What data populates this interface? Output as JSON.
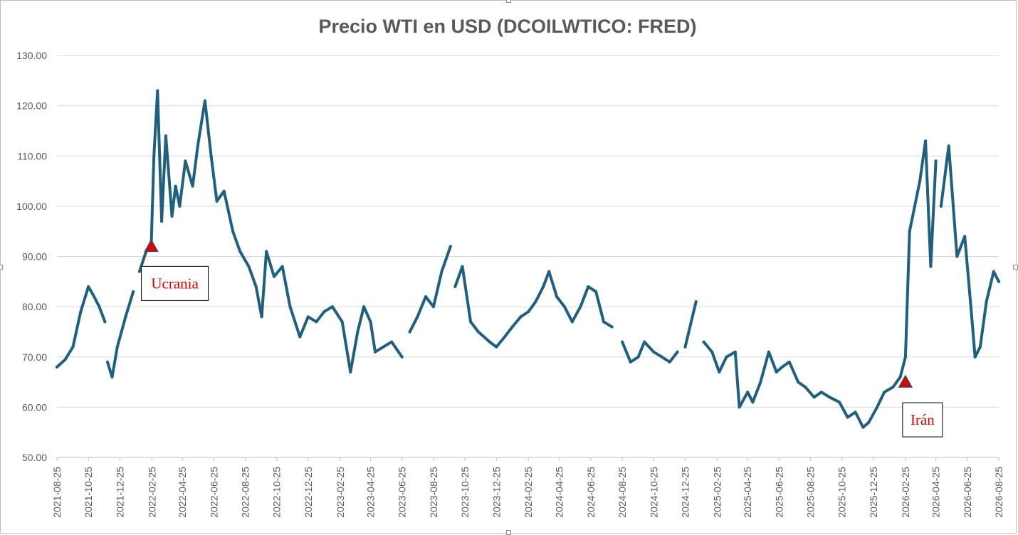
{
  "chart_data": {
    "type": "line",
    "title": "Precio WTI en USD (DCOILWTICO: FRED)",
    "xlabel": "",
    "ylabel": "",
    "ylim": [
      50,
      130
    ],
    "yticks": [
      "50.00",
      "60.00",
      "70.00",
      "80.00",
      "90.00",
      "100.00",
      "110.00",
      "120.00",
      "130.00"
    ],
    "xticks": [
      "2021-08-25",
      "2021-10-25",
      "2021-12-25",
      "2022-02-25",
      "2022-04-25",
      "2022-06-25",
      "2022-08-25",
      "2022-10-25",
      "2022-12-25",
      "2023-02-25",
      "2023-04-25",
      "2023-06-25",
      "2023-08-25",
      "2023-10-25",
      "2023-12-25",
      "2024-02-25",
      "2024-04-25",
      "2024-06-25",
      "2024-08-25",
      "2024-10-25",
      "2024-12-25",
      "2025-02-25",
      "2025-04-25",
      "2025-06-25",
      "2025-08-25",
      "2025-10-25",
      "2025-12-25",
      "2026-02-25",
      "2026-04-25",
      "2026-06-25",
      "2026-08-25"
    ],
    "grid": true,
    "legend": "none",
    "line_color": "#1f5f7f",
    "series": [
      {
        "x": [
          "2021-08-25",
          "2021-09-10",
          "2021-09-25",
          "2021-10-10",
          "2021-10-25",
          "2021-11-05",
          "2021-11-15",
          "2021-11-26",
          "2021-12-01",
          "2021-12-10",
          "2021-12-20",
          "2022-01-05",
          "2022-01-20",
          "2022-02-01",
          "2022-02-14",
          "2022-02-24",
          "2022-03-01",
          "2022-03-08",
          "2022-03-16",
          "2022-03-24",
          "2022-04-05",
          "2022-04-12",
          "2022-04-20",
          "2022-05-01",
          "2022-05-15",
          "2022-05-25",
          "2022-06-08",
          "2022-06-20",
          "2022-07-01",
          "2022-07-15",
          "2022-08-01",
          "2022-08-15",
          "2022-09-01",
          "2022-09-15",
          "2022-09-26",
          "2022-10-05",
          "2022-10-20",
          "2022-11-05",
          "2022-11-20",
          "2022-12-09",
          "2022-12-25",
          "2023-01-10",
          "2023-01-25",
          "2023-02-10",
          "2023-03-01",
          "2023-03-17",
          "2023-03-31",
          "2023-04-12",
          "2023-04-25",
          "2023-05-04",
          "2023-05-20",
          "2023-06-05",
          "2023-06-25",
          "2023-07-10",
          "2023-07-25",
          "2023-08-10",
          "2023-08-25",
          "2023-09-10",
          "2023-09-27",
          "2023-10-06",
          "2023-10-20",
          "2023-11-05",
          "2023-11-20",
          "2023-12-12",
          "2023-12-25",
          "2024-01-10",
          "2024-01-25",
          "2024-02-10",
          "2024-02-25",
          "2024-03-10",
          "2024-03-25",
          "2024-04-05",
          "2024-04-20",
          "2024-05-05",
          "2024-05-20",
          "2024-06-05",
          "2024-06-20",
          "2024-07-05",
          "2024-07-20",
          "2024-08-05",
          "2024-08-25",
          "2024-09-10",
          "2024-09-25",
          "2024-10-07",
          "2024-10-25",
          "2024-11-10",
          "2024-11-25",
          "2024-12-10",
          "2024-12-25",
          "2025-01-15",
          "2025-01-30",
          "2025-02-15",
          "2025-03-01",
          "2025-03-15",
          "2025-04-01",
          "2025-04-09",
          "2025-04-25",
          "2025-05-05",
          "2025-05-20",
          "2025-06-05",
          "2025-06-20",
          "2025-07-01",
          "2025-07-15",
          "2025-08-01",
          "2025-08-15",
          "2025-09-01",
          "2025-09-15",
          "2025-10-01",
          "2025-10-20",
          "2025-11-05",
          "2025-11-20",
          "2025-12-05",
          "2025-12-16",
          "2026-01-01",
          "2026-01-15",
          "2026-02-01",
          "2026-02-15",
          "2026-02-25",
          "2026-03-05",
          "2026-03-15",
          "2026-03-25",
          "2026-04-05",
          "2026-04-15",
          "2026-04-25",
          "2026-05-05",
          "2026-05-20",
          "2026-06-05",
          "2026-06-20",
          "2026-07-01",
          "2026-07-10",
          "2026-07-20",
          "2026-08-01",
          "2026-08-15",
          "2026-08-25"
        ],
        "y": [
          68,
          69.5,
          72,
          79,
          84,
          82,
          80,
          77,
          69,
          66,
          72,
          78,
          83,
          87,
          91,
          93,
          110,
          123,
          97,
          114,
          98,
          104,
          100,
          109,
          104,
          112,
          121,
          110,
          101,
          103,
          95,
          91,
          88,
          84,
          78,
          91,
          86,
          88,
          80,
          74,
          78,
          77,
          79,
          80,
          77,
          67,
          75,
          80,
          77,
          71,
          72,
          73,
          70,
          75,
          78,
          82,
          80,
          87,
          92,
          84,
          88,
          77,
          75,
          73,
          72,
          74,
          76,
          78,
          79,
          81,
          84,
          87,
          82,
          80,
          77,
          80,
          84,
          83,
          77,
          76,
          73,
          69,
          70,
          73,
          71,
          70,
          69,
          71,
          72,
          81,
          73,
          71,
          67,
          70,
          71,
          60,
          63,
          61,
          65,
          71,
          67,
          68,
          69,
          65,
          64,
          62,
          63,
          62,
          61,
          58,
          59,
          56,
          57,
          60,
          63,
          64,
          66,
          70,
          95,
          100,
          105,
          113,
          88,
          109,
          100,
          112,
          90,
          94,
          81,
          70,
          72,
          81,
          87,
          85
        ],
        "gaps": [
          [
            "2021-11-26",
            "2021-12-01"
          ],
          [
            "2022-01-20",
            "2022-02-01"
          ],
          [
            "2023-06-25",
            "2023-07-10"
          ],
          [
            "2023-09-27",
            "2023-10-06"
          ],
          [
            "2024-08-05",
            "2024-08-25"
          ],
          [
            "2024-12-10",
            "2024-12-25"
          ],
          [
            "2025-01-15",
            "2025-01-30"
          ],
          [
            "2026-04-25",
            "2026-05-05"
          ]
        ]
      }
    ],
    "annotations": [
      {
        "label": "Ucrania",
        "x": "2022-02-24",
        "y": 92,
        "marker": "triangle",
        "color": "#e00000"
      },
      {
        "label": "Irán",
        "x": "2026-02-25",
        "y": 65,
        "marker": "triangle",
        "color": "#e00000"
      }
    ]
  }
}
